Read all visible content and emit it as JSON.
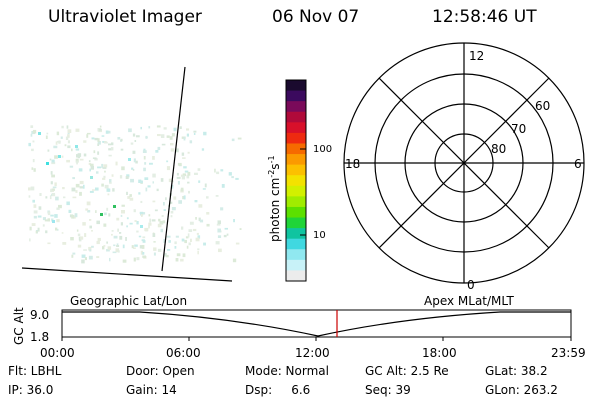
{
  "header": {
    "instrument": "Ultraviolet Imager",
    "date": "06 Nov 07",
    "time": "12:58:46 UT"
  },
  "colorbar": {
    "unit_label": "photon cm",
    "unit_sup1": "-2",
    "unit_mid": "s",
    "unit_sup2": "-1",
    "tick_100": "100",
    "tick_10": "10",
    "colors": [
      "#1a0a2e",
      "#3b0a5e",
      "#7a0a5a",
      "#b00a3a",
      "#d8102a",
      "#ee2a10",
      "#f66a00",
      "#fb9a00",
      "#fcc000",
      "#f3e200",
      "#d2f000",
      "#a0ec00",
      "#5ce000",
      "#20d438",
      "#10c4a0",
      "#40d8e0",
      "#90e8f0",
      "#c8f2f8",
      "#ececec"
    ]
  },
  "polar_plot": {
    "mlt_labels": {
      "top": "12",
      "left": "18",
      "right": "6",
      "bottom": "0"
    },
    "lat_labels": [
      "80",
      "70",
      "60"
    ]
  },
  "timeline": {
    "y_axis_label": "GC Alt",
    "y_max": "9.0",
    "y_min": "1.8",
    "left_label": "Geographic Lat/Lon",
    "right_label": "Apex MLat/MLT",
    "ticks": [
      "00:00",
      "06:00",
      "12:00",
      "18:00",
      "23:59"
    ],
    "marker_color": "#cc0000"
  },
  "info_rows": [
    [
      {
        "name": "filter",
        "text": "Flt: LBHL"
      },
      {
        "name": "door",
        "text": "Door: Open"
      },
      {
        "name": "mode",
        "text": "Mode: Normal"
      },
      {
        "name": "gc-alt",
        "text": "GC Alt: 2.5 Re"
      },
      {
        "name": "glat",
        "text": "GLat:  38.2"
      }
    ],
    [
      {
        "name": "ip",
        "text": "IP: 36.0"
      },
      {
        "name": "gain",
        "text": "Gain: 14"
      },
      {
        "name": "dsp",
        "text": "Dsp:     6.6"
      },
      {
        "name": "seq",
        "text": "Seq: 39"
      },
      {
        "name": "glon",
        "text": "GLon: 263.2"
      }
    ]
  ]
}
